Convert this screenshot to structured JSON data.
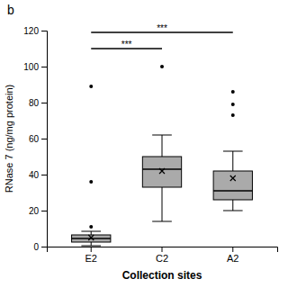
{
  "chart_data": {
    "type": "box",
    "title": "b",
    "xlabel": "Collection sites",
    "ylabel": "RNase 7 (ng/mg protein)",
    "categories": [
      "E2",
      "C2",
      "A2"
    ],
    "color": "#aaaaaa",
    "boxes": [
      {
        "whislo": 0.5,
        "q1": 2.5,
        "med": 4.5,
        "q3": 6.5,
        "whishi": 8.5,
        "fliers": [
          11,
          36,
          89
        ],
        "mean": 5
      },
      {
        "whislo": 14,
        "q1": 33,
        "med": 43,
        "q3": 50,
        "whishi": 62,
        "fliers": [
          100
        ],
        "mean": 42
      },
      {
        "whislo": 20,
        "q1": 26,
        "med": 31,
        "q3": 42,
        "whishi": 53,
        "fliers": [
          73,
          79,
          86
        ],
        "mean": 38
      }
    ],
    "annotations": [
      {
        "from": "E2",
        "to": "C2",
        "y": 110,
        "label": "***"
      },
      {
        "from": "E2",
        "to": "A2",
        "y": 119,
        "label": "***"
      }
    ],
    "ylim": [
      0,
      120
    ],
    "yticks": [
      0,
      20,
      40,
      60,
      80,
      100,
      120
    ]
  }
}
